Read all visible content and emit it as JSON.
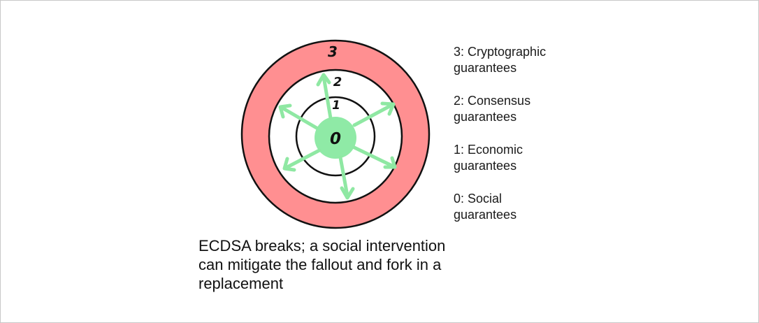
{
  "diagram": {
    "ring_labels": {
      "outer": "3",
      "middle": "2",
      "inner": "1",
      "core": "0"
    },
    "colors": {
      "outer_ring": "#ff8f91",
      "middle_ring": "#ffffff",
      "inner_ring": "#ffffff",
      "core": "#8feaa6",
      "arrows": "#8fe8a3",
      "outline": "#111111"
    }
  },
  "legend": {
    "items": [
      "3: Cryptographic\nguarantees",
      "2: Consensus\nguarantees",
      "1: Economic\nguarantees",
      "0: Social\nguarantees"
    ]
  },
  "caption": "ECDSA breaks; a social intervention\ncan mitigate the fallout and fork in a\nreplacement"
}
